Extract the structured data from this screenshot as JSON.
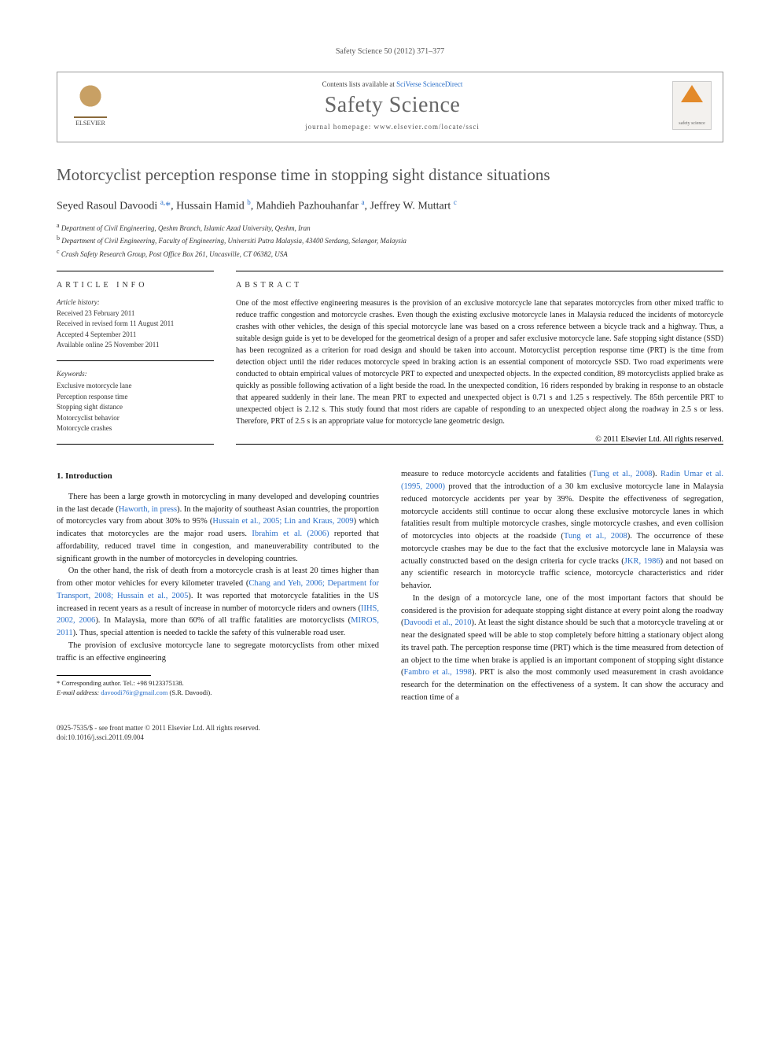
{
  "running_head": "Safety Science 50 (2012) 371–377",
  "header": {
    "elsevier_label": "ELSEVIER",
    "contents_prefix": "Contents lists available at ",
    "contents_link": "SciVerse ScienceDirect",
    "journal_title": "Safety Science",
    "homepage_prefix": "journal homepage: ",
    "homepage_url": "www.elsevier.com/locate/ssci",
    "cover_text": "safety science"
  },
  "article": {
    "title": "Motorcyclist perception response time in stopping sight distance situations",
    "authors_html": "Seyed Rasoul Davoodi <sup>a,</sup><span class='star'>*</span>, Hussain Hamid <sup>b</sup>, Mahdieh Pazhouhanfar <sup>a</sup>, Jeffrey W. Muttart <sup>c</sup>",
    "affiliations": {
      "a": "Department of Civil Engineering, Qeshm Branch, Islamic Azad University, Qeshm, Iran",
      "b": "Department of Civil Engineering, Faculty of Engineering, Universiti Putra Malaysia, 43400 Serdang, Selangor, Malaysia",
      "c": "Crash Safety Research Group, Post Office Box 261, Uncasville, CT 06382, USA"
    }
  },
  "article_info": {
    "heading": "article info",
    "history_label": "Article history:",
    "history": [
      "Received 23 February 2011",
      "Received in revised form 11 August 2011",
      "Accepted 4 September 2011",
      "Available online 25 November 2011"
    ],
    "keywords_label": "Keywords:",
    "keywords": [
      "Exclusive motorcycle lane",
      "Perception response time",
      "Stopping sight distance",
      "Motorcyclist behavior",
      "Motorcycle crashes"
    ]
  },
  "abstract": {
    "heading": "abstract",
    "text": "One of the most effective engineering measures is the provision of an exclusive motorcycle lane that separates motorcycles from other mixed traffic to reduce traffic congestion and motorcycle crashes. Even though the existing exclusive motorcycle lanes in Malaysia reduced the incidents of motorcycle crashes with other vehicles, the design of this special motorcycle lane was based on a cross reference between a bicycle track and a highway. Thus, a suitable design guide is yet to be developed for the geometrical design of a proper and safer exclusive motorcycle lane. Safe stopping sight distance (SSD) has been recognized as a criterion for road design and should be taken into account. Motorcyclist perception response time (PRT) is the time from detection object until the rider reduces motorcycle speed in braking action is an essential component of motorcycle SSD. Two road experiments were conducted to obtain empirical values of motorcycle PRT to expected and unexpected objects. In the expected condition, 89 motorcyclists applied brake as quickly as possible following activation of a light beside the road. In the unexpected condition, 16 riders responded by braking in response to an obstacle that appeared suddenly in their lane. The mean PRT to expected and unexpected object is 0.71 s and 1.25 s respectively. The 85th percentile PRT to unexpected object is 2.12 s. This study found that most riders are capable of responding to an unexpected object along the roadway in 2.5 s or less. Therefore, PRT of 2.5 s is an appropriate value for motorcycle lane geometric design.",
    "copyright": "© 2011 Elsevier Ltd. All rights reserved."
  },
  "body": {
    "section1_heading": "1. Introduction",
    "p1": "There has been a large growth in motorcycling in many developed and developing countries in the last decade (Haworth, in press). In the majority of southeast Asian countries, the proportion of motorcycles vary from about 30% to 95% (Hussain et al., 2005; Lin and Kraus, 2009) which indicates that motorcycles are the major road users. Ibrahim et al. (2006) reported that affordability, reduced travel time in congestion, and maneuverability contributed to the significant growth in the number of motorcycles in developing countries.",
    "p2": "On the other hand, the risk of death from a motorcycle crash is at least 20 times higher than from other motor vehicles for every kilometer traveled (Chang and Yeh, 2006; Department for Transport, 2008; Hussain et al., 2005). It was reported that motorcycle fatalities in the US increased in recent years as a result of increase in number of motorcycle riders and owners (IIHS, 2002, 2006). In Malaysia, more than 60% of all traffic fatalities are motorcyclists (MIROS, 2011). Thus, special attention is needed to tackle the safety of this vulnerable road user.",
    "p3": "The provision of exclusive motorcycle lane to segregate motorcyclists from other mixed traffic is an effective engineering",
    "p4": "measure to reduce motorcycle accidents and fatalities (Tung et al., 2008). Radin Umar et al. (1995, 2000) proved that the introduction of a 30 km exclusive motorcycle lane in Malaysia reduced motorcycle accidents per year by 39%. Despite the effectiveness of segregation, motorcycle accidents still continue to occur along these exclusive motorcycle lanes in which fatalities result from multiple motorcycle crashes, single motorcycle crashes, and even collision of motorcycles into objects at the roadside (Tung et al., 2008). The occurrence of these motorcycle crashes may be due to the fact that the exclusive motorcycle lane in Malaysia was actually constructed based on the design criteria for cycle tracks (JKR, 1986) and not based on any scientific research in motorcycle traffic science, motorcycle characteristics and rider behavior.",
    "p5": "In the design of a motorcycle lane, one of the most important factors that should be considered is the provision for adequate stopping sight distance at every point along the roadway (Davoodi et al., 2010). At least the sight distance should be such that a motorcycle traveling at or near the designated speed will be able to stop completely before hitting a stationary object along its travel path. The perception response time (PRT) which is the time measured from detection of an object to the time when brake is applied is an important component of stopping sight distance (Fambro et al., 1998). PRT is also the most commonly used measurement in crash avoidance research for the determination on the effectiveness of a system. It can show the accuracy and reaction time of a"
  },
  "footnotes": {
    "corresponding": "* Corresponding author. Tel.: +98 9123375138.",
    "email_label": "E-mail address:",
    "email": "davoodi76ir@gmail.com",
    "email_suffix": " (S.R. Davoodi)."
  },
  "footer": {
    "issn_line": "0925-7535/$ - see front matter © 2011 Elsevier Ltd. All rights reserved.",
    "doi_line": "doi:10.1016/j.ssci.2011.09.004"
  },
  "colors": {
    "link": "#2a6fc9",
    "title_gray": "#555555",
    "text": "#1a1a1a"
  }
}
